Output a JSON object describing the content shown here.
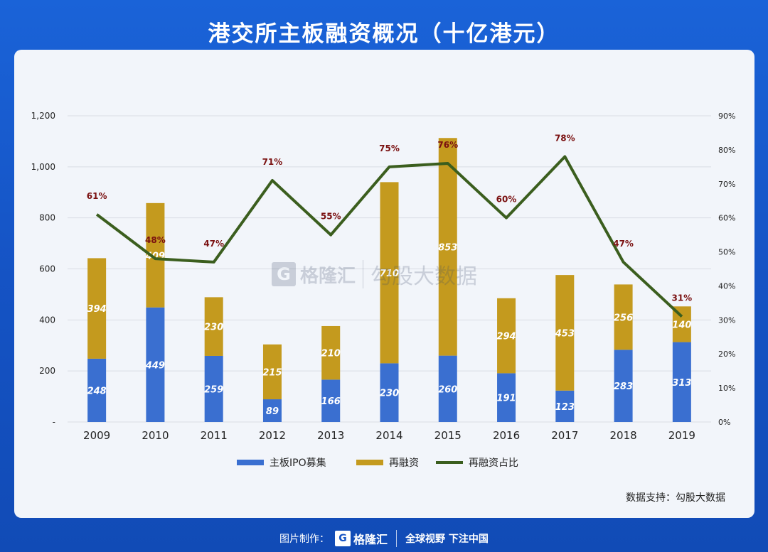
{
  "title": "港交所主板融资概况（十亿港元）",
  "source": "数据支持：勾股大数据",
  "watermark": {
    "logo": "G",
    "brand": "格隆汇",
    "text": "勾股大数据"
  },
  "footer": {
    "label": "图片制作：",
    "logo": "G",
    "brand": "格隆汇",
    "slogan": "全球视野 下注中国"
  },
  "chart_data": {
    "type": "bar",
    "stacked": true,
    "categories": [
      "2009",
      "2010",
      "2011",
      "2012",
      "2013",
      "2014",
      "2015",
      "2016",
      "2017",
      "2018",
      "2019"
    ],
    "series": [
      {
        "name": "主板IPO募集",
        "kind": "bar",
        "color": "#3a6fd0",
        "values": [
          248,
          449,
          259,
          89,
          166,
          230,
          260,
          191,
          123,
          283,
          313
        ],
        "labels": [
          "248",
          "449",
          "259",
          "89",
          "166",
          "230",
          "260",
          "191",
          "123",
          "283",
          "313"
        ]
      },
      {
        "name": "再融资",
        "kind": "bar",
        "color": "#c49a1e",
        "values": [
          394,
          409,
          230,
          215,
          210,
          710,
          853,
          294,
          453,
          256,
          140
        ],
        "labels": [
          "394",
          "409",
          "230",
          "215",
          "210",
          "710",
          "853",
          "294",
          "453",
          "256",
          "140"
        ]
      },
      {
        "name": "再融资占比",
        "kind": "line",
        "axis": "right",
        "color": "#3b5e1e",
        "values": [
          61,
          48,
          47,
          71,
          55,
          75,
          76,
          60,
          78,
          47,
          31
        ],
        "labels": [
          "61%",
          "48%",
          "47%",
          "71%",
          "55%",
          "75%",
          "76%",
          "60%",
          "78%",
          "47%",
          "31%"
        ]
      }
    ],
    "y_left": {
      "min": 0,
      "max": 1200,
      "ticks": [
        "-",
        "200",
        "400",
        "600",
        "800",
        "1,000",
        "1,200"
      ]
    },
    "y_right": {
      "min": 0,
      "max": 90,
      "ticks": [
        "0%",
        "10%",
        "20%",
        "30%",
        "40%",
        "50%",
        "60%",
        "70%",
        "80%",
        "90%"
      ]
    },
    "grid": true,
    "legend_position": "bottom"
  }
}
